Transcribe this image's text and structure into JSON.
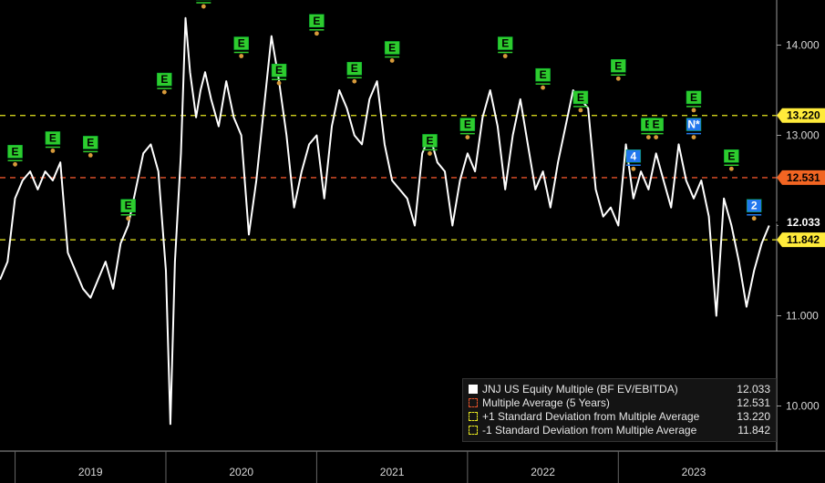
{
  "chart_data": {
    "type": "line",
    "title": "",
    "x_ticks": [
      "2019",
      "2020",
      "2021",
      "2022",
      "2023"
    ],
    "y_ticks": [
      10.0,
      11.0,
      12.0,
      13.0,
      14.0
    ],
    "y_tick_labels": [
      "10.000",
      "11.000",
      "12.000",
      "13.000",
      "14.000"
    ],
    "ylim": [
      9.5,
      14.5
    ],
    "xlim": [
      2018.9,
      2024.05
    ],
    "grid": false,
    "legend_position": "bottom-right",
    "series": [
      {
        "name": "JNJ US Equity Multiple (BF EV/EBITDA)",
        "last_value": 12.033,
        "color": "#ffffff",
        "x": [
          2018.9,
          2018.95,
          2019.0,
          2019.05,
          2019.1,
          2019.15,
          2019.2,
          2019.25,
          2019.3,
          2019.35,
          2019.4,
          2019.45,
          2019.5,
          2019.55,
          2019.6,
          2019.65,
          2019.7,
          2019.75,
          2019.8,
          2019.85,
          2019.9,
          2019.95,
          2020.0,
          2020.03,
          2020.06,
          2020.1,
          2020.13,
          2020.16,
          2020.2,
          2020.23,
          2020.26,
          2020.3,
          2020.35,
          2020.4,
          2020.45,
          2020.5,
          2020.55,
          2020.6,
          2020.65,
          2020.7,
          2020.75,
          2020.8,
          2020.85,
          2020.9,
          2020.95,
          2021.0,
          2021.05,
          2021.1,
          2021.15,
          2021.2,
          2021.25,
          2021.3,
          2021.35,
          2021.4,
          2021.45,
          2021.5,
          2021.55,
          2021.6,
          2021.65,
          2021.7,
          2021.75,
          2021.8,
          2021.85,
          2021.9,
          2021.95,
          2022.0,
          2022.05,
          2022.1,
          2022.15,
          2022.2,
          2022.25,
          2022.3,
          2022.35,
          2022.4,
          2022.45,
          2022.5,
          2022.55,
          2022.6,
          2022.65,
          2022.7,
          2022.75,
          2022.8,
          2022.85,
          2022.9,
          2022.95,
          2023.0,
          2023.05,
          2023.1,
          2023.15,
          2023.2,
          2023.25,
          2023.3,
          2023.35,
          2023.4,
          2023.45,
          2023.5,
          2023.55,
          2023.6,
          2023.65,
          2023.7,
          2023.75,
          2023.8,
          2023.85,
          2023.9,
          2023.95,
          2024.0
        ],
        "y": [
          11.4,
          11.6,
          12.3,
          12.5,
          12.6,
          12.4,
          12.6,
          12.5,
          12.7,
          11.7,
          11.5,
          11.3,
          11.2,
          11.4,
          11.6,
          11.3,
          11.8,
          12.0,
          12.4,
          12.8,
          12.9,
          12.6,
          11.5,
          9.8,
          11.6,
          12.8,
          14.3,
          13.7,
          13.2,
          13.5,
          13.7,
          13.4,
          13.1,
          13.6,
          13.2,
          13.0,
          11.9,
          12.5,
          13.3,
          14.1,
          13.6,
          13.0,
          12.2,
          12.6,
          12.9,
          13.0,
          12.3,
          13.1,
          13.5,
          13.3,
          13.0,
          12.9,
          13.4,
          13.6,
          12.9,
          12.5,
          12.4,
          12.3,
          12.0,
          12.8,
          13.0,
          12.7,
          12.6,
          12.0,
          12.5,
          12.8,
          12.6,
          13.2,
          13.5,
          13.1,
          12.4,
          13.0,
          13.4,
          12.9,
          12.4,
          12.6,
          12.2,
          12.7,
          13.1,
          13.5,
          13.4,
          13.3,
          12.4,
          12.1,
          12.2,
          12.0,
          12.9,
          12.3,
          12.6,
          12.4,
          12.8,
          12.5,
          12.2,
          12.9,
          12.5,
          12.3,
          12.5,
          12.1,
          11.0,
          12.3,
          12.0,
          11.6,
          11.1,
          11.5,
          11.8,
          12.0
        ]
      },
      {
        "name": "Multiple Average (5 Years)",
        "last_value": 12.531,
        "color": "#e8532a",
        "style": "dashed"
      },
      {
        "name": "+1 Standard Deviation from Multiple Average",
        "last_value": 13.22,
        "color": "#e8e820",
        "style": "dashed"
      },
      {
        "name": "-1 Standard Deviation from Multiple Average",
        "last_value": 11.842,
        "color": "#e8e820",
        "style": "dashed"
      }
    ],
    "value_tags": [
      {
        "value": 13.22,
        "label": "13.220",
        "bg": "#ffeb3b",
        "fg": "#000000"
      },
      {
        "value": 12.531,
        "label": "12.531",
        "bg": "#f26522",
        "fg": "#000000"
      },
      {
        "value": 12.033,
        "label": "12.033",
        "bg": "#000000",
        "fg": "#ffffff"
      },
      {
        "value": 11.842,
        "label": "11.842",
        "bg": "#ffeb3b",
        "fg": "#000000"
      }
    ],
    "event_markers": [
      {
        "x": 2019.0,
        "y": 12.8,
        "label": "E",
        "color": "#2ecc2e"
      },
      {
        "x": 2019.25,
        "y": 12.95,
        "label": "E",
        "color": "#2ecc2e"
      },
      {
        "x": 2019.5,
        "y": 12.9,
        "label": "E",
        "color": "#2ecc2e"
      },
      {
        "x": 2019.75,
        "y": 12.2,
        "label": "E",
        "color": "#2ecc2e"
      },
      {
        "x": 2019.99,
        "y": 13.6,
        "label": "E",
        "color": "#2ecc2e"
      },
      {
        "x": 2020.25,
        "y": 14.55,
        "label": "E",
        "color": "#2ecc2e"
      },
      {
        "x": 2020.5,
        "y": 14.0,
        "label": "E",
        "color": "#2ecc2e"
      },
      {
        "x": 2020.75,
        "y": 13.7,
        "label": "E",
        "color": "#2ecc2e"
      },
      {
        "x": 2021.0,
        "y": 14.25,
        "label": "E",
        "color": "#2ecc2e"
      },
      {
        "x": 2021.25,
        "y": 13.72,
        "label": "E",
        "color": "#2ecc2e"
      },
      {
        "x": 2021.5,
        "y": 13.95,
        "label": "E",
        "color": "#2ecc2e"
      },
      {
        "x": 2021.75,
        "y": 12.92,
        "label": "E",
        "color": "#2ecc2e"
      },
      {
        "x": 2022.0,
        "y": 13.1,
        "label": "E",
        "color": "#2ecc2e"
      },
      {
        "x": 2022.25,
        "y": 14.0,
        "label": "E",
        "color": "#2ecc2e"
      },
      {
        "x": 2022.5,
        "y": 13.65,
        "label": "E",
        "color": "#2ecc2e"
      },
      {
        "x": 2022.75,
        "y": 13.4,
        "label": "E",
        "color": "#2ecc2e"
      },
      {
        "x": 2023.0,
        "y": 13.75,
        "label": "E",
        "color": "#2ecc2e"
      },
      {
        "x": 2023.1,
        "y": 12.75,
        "label": "4",
        "color": "#2277ee"
      },
      {
        "x": 2023.2,
        "y": 13.1,
        "label": "E",
        "color": "#2ecc2e"
      },
      {
        "x": 2023.25,
        "y": 13.1,
        "label": "E",
        "color": "#2ecc2e"
      },
      {
        "x": 2023.5,
        "y": 13.4,
        "label": "E",
        "color": "#2ecc2e"
      },
      {
        "x": 2023.5,
        "y": 13.1,
        "label": "N*",
        "color": "#2277ee"
      },
      {
        "x": 2023.75,
        "y": 12.75,
        "label": "E",
        "color": "#2ecc2e"
      },
      {
        "x": 2023.9,
        "y": 12.2,
        "label": "2",
        "color": "#2277ee"
      }
    ]
  },
  "legend": {
    "items": [
      {
        "label": "JNJ US Equity Multiple (BF EV/EBITDA)",
        "value": "12.033",
        "swatch": "solid-white"
      },
      {
        "label": "Multiple Average (5 Years)",
        "value": "12.531",
        "swatch": "dashed-orange"
      },
      {
        "label": "+1 Standard Deviation from Multiple Average",
        "value": "13.220",
        "swatch": "dashed-yellow"
      },
      {
        "label": "-1 Standard Deviation from Multiple Average",
        "value": "11.842",
        "swatch": "dashed-yellow"
      }
    ]
  }
}
